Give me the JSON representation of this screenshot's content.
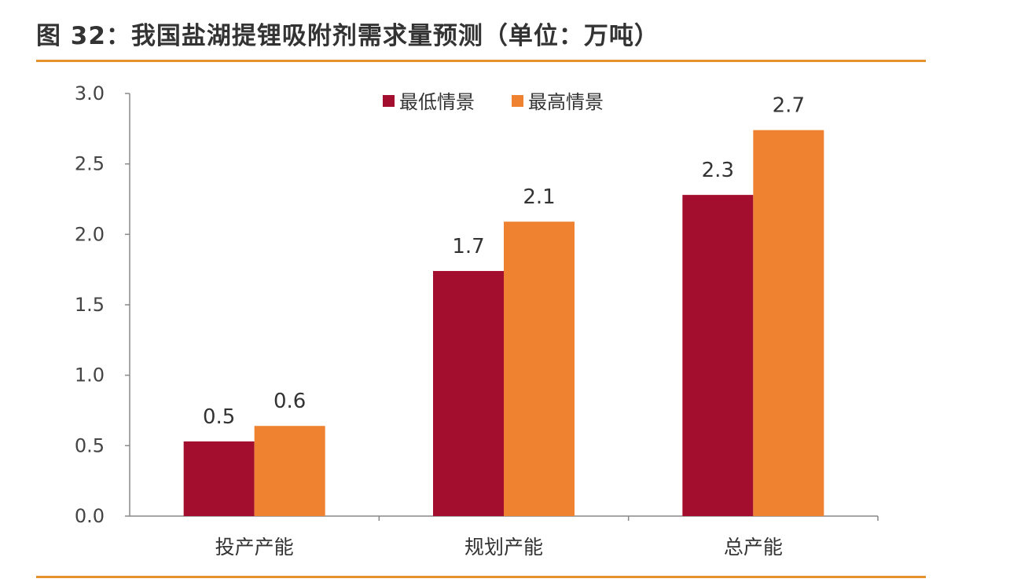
{
  "title": "图 32：我国盐湖提锂吸附剂需求量预测（单位：万吨）",
  "colors": {
    "low": "#A30E2E",
    "high": "#EE8230",
    "rule": "#E8922E"
  },
  "chart_data": {
    "type": "bar",
    "title": "图 32：我国盐湖提锂吸附剂需求量预测（单位：万吨）",
    "categories": [
      "投产产能",
      "规划产能",
      "总产能"
    ],
    "series": [
      {
        "name": "最低情景",
        "values": [
          0.53,
          1.74,
          2.28
        ],
        "labels": [
          "0.5",
          "1.7",
          "2.3"
        ]
      },
      {
        "name": "最高情景",
        "values": [
          0.64,
          2.09,
          2.74
        ],
        "labels": [
          "0.6",
          "2.1",
          "2.7"
        ]
      }
    ],
    "yticks": [
      "0.0",
      "0.5",
      "1.0",
      "1.5",
      "2.0",
      "2.5",
      "3.0"
    ],
    "ylim": [
      0,
      3.0
    ],
    "xlabel": "",
    "ylabel": "",
    "grid": false,
    "legend": "top-center"
  }
}
